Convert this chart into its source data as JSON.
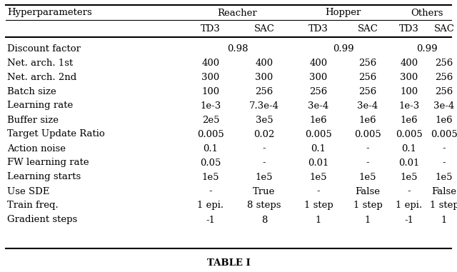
{
  "title": "TABLE I",
  "rows": [
    [
      "Discount factor",
      "0.98",
      "",
      "0.99",
      "",
      "0.99",
      ""
    ],
    [
      "Net. arch. 1st",
      "400",
      "400",
      "400",
      "256",
      "400",
      "256"
    ],
    [
      "Net. arch. 2nd",
      "300",
      "300",
      "300",
      "256",
      "300",
      "256"
    ],
    [
      "Batch size",
      "100",
      "256",
      "256",
      "256",
      "100",
      "256"
    ],
    [
      "Learning rate",
      "1e-3",
      "7.3e-4",
      "3e-4",
      "3e-4",
      "1e-3",
      "3e-4"
    ],
    [
      "Buffer size",
      "2e5",
      "3e5",
      "1e6",
      "1e6",
      "1e6",
      "1e6"
    ],
    [
      "Target Update Ratio",
      "0.005",
      "0.02",
      "0.005",
      "0.005",
      "0.005",
      "0.005"
    ],
    [
      "Action noise",
      "0.1",
      "-",
      "0.1",
      "-",
      "0.1",
      "-"
    ],
    [
      "FW learning rate",
      "0.05",
      "-",
      "0.01",
      "-",
      "0.01",
      "-"
    ],
    [
      "Learning starts",
      "1e5",
      "1e5",
      "1e5",
      "1e5",
      "1e5",
      "1e5"
    ],
    [
      "Use SDE",
      "-",
      "True",
      "-",
      "False",
      "-",
      "False"
    ],
    [
      "Train freq.",
      "1 epi.",
      "8 steps",
      "1 step",
      "1 step",
      "1 epi.",
      "1 step"
    ],
    [
      "Gradient steps",
      "-1",
      "8",
      "1",
      "1",
      "-1",
      "1"
    ]
  ],
  "discount_values": [
    "0.98",
    "0.99",
    "0.99"
  ],
  "level1": [
    "Hyperparameters",
    "Reacher",
    "Hopper",
    "Others"
  ],
  "level2": [
    "TD3",
    "SAC",
    "TD3",
    "SAC",
    "TD3",
    "SAC"
  ],
  "background_color": "#ffffff",
  "text_color": "#000000",
  "font_size": 9.5,
  "title_font_size": 9.5
}
